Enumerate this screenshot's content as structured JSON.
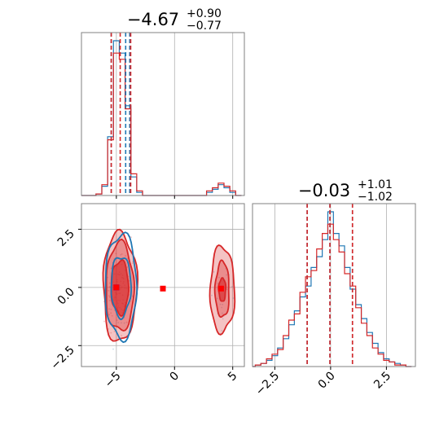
{
  "colors": {
    "series_a": "#1f77b4",
    "series_b": "#d62728",
    "truth_marker_a": "#0000ff",
    "truth_marker_b": "#ff0000",
    "grid": "#b0b0b0",
    "frame": "#808080"
  },
  "chart_data": [
    {
      "panel": "marginal-x",
      "type": "histogram",
      "title": {
        "value": "−4.67",
        "upper": "+0.90",
        "lower": "−0.77"
      },
      "xlim": [
        -8,
        6
      ],
      "xticks": [
        -5,
        0,
        5
      ],
      "grid": true,
      "quantile_lines": {
        "series_a": [
          -5.44,
          -4.2,
          -3.85
        ],
        "series_b": [
          -5.44,
          -4.67,
          -3.77
        ]
      },
      "bin_centers": [
        -8,
        -7.5,
        -7,
        -6.5,
        -6,
        -5.5,
        -5,
        -4.5,
        -4,
        -3.5,
        -3,
        -2.5,
        -2,
        -1.5,
        -1,
        -0.5,
        0,
        0.5,
        1,
        1.5,
        2,
        2.5,
        3,
        3.5,
        4,
        4.5,
        5,
        5.5
      ],
      "series": [
        {
          "name": "",
          "values": [
            0,
            0,
            0,
            1,
            6,
            38,
            100,
            92,
            58,
            12,
            2,
            0,
            0,
            0,
            0,
            0,
            0,
            0,
            0,
            0,
            0,
            0,
            2,
            4,
            7,
            5,
            2,
            0
          ]
        },
        {
          "name": "",
          "values": [
            0,
            0,
            0,
            1,
            7,
            36,
            92,
            88,
            56,
            14,
            3,
            0,
            0,
            0,
            0,
            0,
            0,
            0,
            0,
            0,
            0,
            0,
            3,
            5,
            8,
            6,
            3,
            0
          ]
        }
      ]
    },
    {
      "panel": "marginal-y",
      "type": "histogram",
      "title": {
        "value": "−0.03",
        "upper": "+1.01",
        "lower": "−1.02"
      },
      "xlim": [
        -3.5,
        3.8
      ],
      "xticks": [
        -2.5,
        0.0,
        2.5
      ],
      "xtick_labels": [
        "−2.5",
        "0.0",
        "2.5"
      ],
      "grid": true,
      "quantile_lines": {
        "series_a": [
          -1.05,
          -0.03,
          0.98
        ],
        "series_b": [
          -1.05,
          -0.03,
          0.98
        ]
      },
      "bin_centers": [
        -3.5,
        -3.25,
        -3.0,
        -2.75,
        -2.5,
        -2.25,
        -2.0,
        -1.75,
        -1.5,
        -1.25,
        -1.0,
        -0.75,
        -0.5,
        -0.25,
        0.0,
        0.25,
        0.5,
        0.75,
        1.0,
        1.25,
        1.5,
        1.75,
        2.0,
        2.25,
        2.5,
        2.75,
        3.0,
        3.25,
        3.5
      ],
      "series": [
        {
          "name": "",
          "values": [
            0,
            1,
            2,
            4,
            7,
            12,
            18,
            27,
            36,
            45,
            52,
            64,
            71,
            82,
            100,
            86,
            78,
            64,
            50,
            40,
            31,
            22,
            15,
            9,
            5,
            3,
            2,
            1,
            0
          ]
        },
        {
          "name": "",
          "values": [
            0,
            1,
            2,
            5,
            8,
            11,
            20,
            30,
            34,
            48,
            58,
            62,
            76,
            86,
            92,
            82,
            74,
            60,
            52,
            38,
            28,
            20,
            12,
            8,
            4,
            3,
            1,
            1,
            0
          ]
        }
      ]
    },
    {
      "panel": "joint",
      "type": "contour",
      "xlim": [
        -8,
        6
      ],
      "ylim": [
        -3.4,
        3.6
      ],
      "xticks": [
        -5,
        0,
        5
      ],
      "yticks": [
        -2.5,
        0.0,
        2.5
      ],
      "ytick_labels": [
        "−2.5",
        "0.0",
        "2.5"
      ],
      "grid": true,
      "modes": [
        {
          "series": "series_b",
          "cx": -4.7,
          "cy": 0.0,
          "levels": [
            {
              "rx": 1.45,
              "ry": 2.35
            },
            {
              "rx": 1.2,
              "ry": 1.9
            },
            {
              "rx": 0.75,
              "ry": 1.15
            }
          ]
        },
        {
          "series": "series_a",
          "cx": -4.6,
          "cy": 0.05,
          "levels": [
            {
              "rx": 1.35,
              "ry": 2.25
            },
            {
              "rx": 0.85,
              "ry": 1.3
            }
          ]
        },
        {
          "series": "series_b",
          "cx": 4.1,
          "cy": -0.1,
          "levels": [
            {
              "rx": 1.05,
              "ry": 1.85
            },
            {
              "rx": 0.6,
              "ry": 1.2
            },
            {
              "rx": 0.3,
              "ry": 0.5
            }
          ]
        }
      ],
      "markers": [
        {
          "series": "truth_marker_a",
          "x": -5.0,
          "y": 0.0
        },
        {
          "series": "truth_marker_b",
          "x": -5.0,
          "y": 0.0
        },
        {
          "series": "truth_marker_b",
          "x": -1.0,
          "y": -0.05
        },
        {
          "series": "truth_marker_b",
          "x": 4.0,
          "y": -0.05
        }
      ]
    }
  ]
}
